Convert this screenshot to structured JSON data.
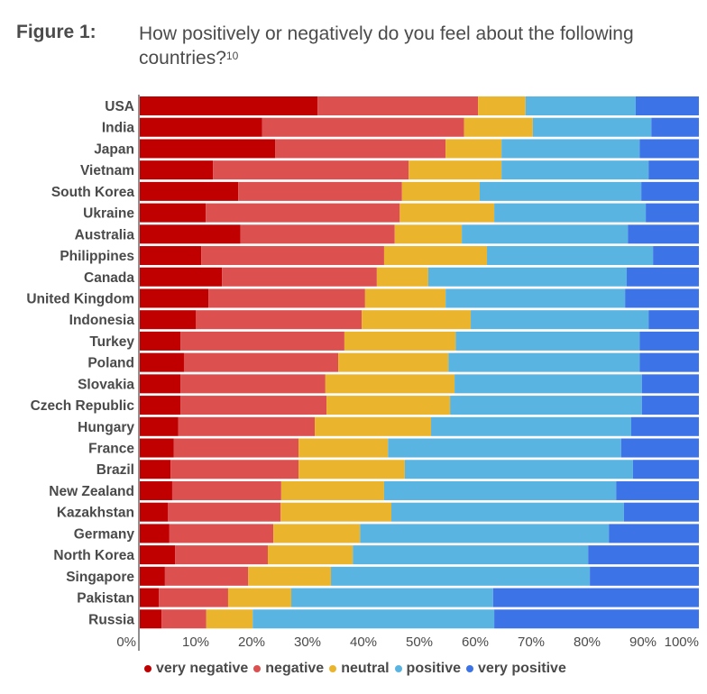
{
  "figure": {
    "label": "Figure 1:",
    "title": "How positively or negatively do you feel about the following countries?",
    "footnote": "10"
  },
  "chart_data": {
    "type": "bar",
    "orientation": "horizontal",
    "stacked": true,
    "title": "How positively or negatively do you feel about the following countries?",
    "xlabel": "",
    "ylabel": "",
    "xlim": [
      0,
      100
    ],
    "x_ticks": [
      "0%",
      "10%",
      "20%",
      "30%",
      "40%",
      "50%",
      "60%",
      "70%",
      "80%",
      "90%",
      "100%"
    ],
    "grid": false,
    "legend_position": "bottom",
    "categories": [
      "USA",
      "India",
      "Japan",
      "Vietnam",
      "South Korea",
      "Ukraine",
      "Australia",
      "Philippines",
      "Canada",
      "United Kingdom",
      "Indonesia",
      "Turkey",
      "Poland",
      "Slovakia",
      "Czech Republic",
      "Hungary",
      "France",
      "Brazil",
      "New Zealand",
      "Kazakhstan",
      "Germany",
      "North Korea",
      "Singapore",
      "Pakistan",
      "Russia"
    ],
    "series": [
      {
        "name": "very negative",
        "color": "#c00000",
        "values": [
          31.8,
          21.9,
          24.2,
          13.1,
          17.6,
          11.8,
          18.0,
          11.0,
          14.7,
          12.3,
          10.0,
          7.3,
          7.9,
          7.3,
          7.3,
          6.9,
          6.1,
          5.5,
          5.8,
          5.0,
          5.3,
          6.3,
          4.5,
          3.4,
          3.9
        ]
      },
      {
        "name": "negative",
        "color": "#dc5050",
        "values": [
          28.7,
          36.1,
          30.5,
          35.0,
          29.3,
          34.7,
          27.6,
          32.7,
          27.7,
          28.0,
          29.7,
          29.3,
          27.6,
          25.9,
          26.1,
          24.4,
          22.3,
          22.9,
          19.5,
          20.2,
          18.6,
          16.6,
          14.9,
          12.4,
          8.0
        ]
      },
      {
        "name": "neutral",
        "color": "#ebb42d",
        "values": [
          8.5,
          12.3,
          10.0,
          16.6,
          13.9,
          16.9,
          12.0,
          18.4,
          9.2,
          14.4,
          19.5,
          19.9,
          19.7,
          23.1,
          22.1,
          20.8,
          16.0,
          19.0,
          18.4,
          19.8,
          15.5,
          15.2,
          14.8,
          11.3,
          8.3
        ]
      },
      {
        "name": "positive",
        "color": "#5ab4e1",
        "values": [
          19.7,
          21.2,
          24.7,
          26.3,
          28.9,
          27.1,
          29.7,
          29.7,
          35.5,
          32.1,
          31.8,
          32.9,
          34.2,
          33.5,
          34.3,
          35.8,
          41.7,
          40.8,
          41.5,
          41.6,
          44.5,
          42.1,
          46.3,
          36.1,
          43.2
        ]
      },
      {
        "name": "very positive",
        "color": "#3c73e6",
        "values": [
          11.3,
          8.5,
          10.6,
          9.0,
          10.3,
          9.5,
          12.7,
          8.2,
          12.9,
          13.2,
          9.0,
          10.6,
          10.6,
          10.2,
          10.2,
          12.1,
          13.9,
          11.8,
          14.8,
          13.4,
          16.1,
          19.8,
          19.5,
          36.8,
          36.6
        ]
      }
    ]
  }
}
